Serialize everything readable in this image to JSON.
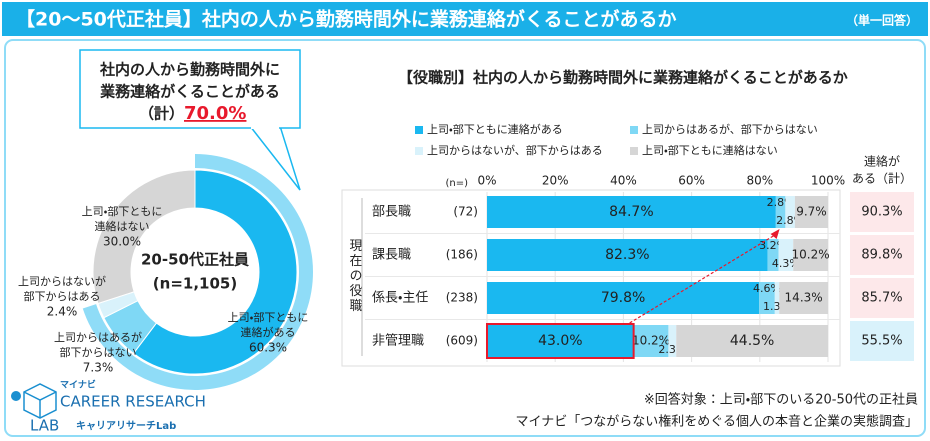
{
  "header": {
    "title": "【20～50代正社員】社内の人から勤務時間外に業務連絡がくることがあるか",
    "note": "（単一回答）"
  },
  "chart_data": [
    {
      "type": "pie",
      "center_label": "20-50代正社員",
      "center_sub": "(n=1,105)",
      "callout": {
        "lines": [
          "社内の人から勤務時間外に",
          "業務連絡がくることがある"
        ],
        "prefix": "（計）",
        "value": 70.0,
        "value_label": "70.0%",
        "color": "#8fdcf7"
      },
      "categories": [
        [
          "上司・部下ともに",
          "連絡がある"
        ],
        [
          "上司からはあるが",
          "部下からはない"
        ],
        [
          "上司からはないが",
          "部下からはある"
        ],
        [
          "上司・部下ともに",
          "連絡はない"
        ]
      ],
      "values": [
        60.3,
        7.3,
        2.4,
        30.0
      ],
      "value_labels": [
        "60.3%",
        "7.3%",
        "2.4%",
        "30.0%"
      ],
      "colors": [
        "#1ab8f0",
        "#7fd8f5",
        "#d9f2fb",
        "#d6d6d6"
      ]
    },
    {
      "type": "stacked-barh",
      "title": "【役職別】社内の人から勤務時間外に業務連絡がくることがあるか",
      "y_axis_label": "現在の役職",
      "n_header": "(n=)",
      "categories": [
        "部長職",
        "課長職",
        "係長・主任",
        "非管理職"
      ],
      "n_labels": [
        "(72)",
        "(186)",
        "(238)",
        "(609)"
      ],
      "series": [
        {
          "name": "上司・部下ともに連絡がある",
          "color": "#1ab8f0",
          "values": [
            84.7,
            82.3,
            79.8,
            43.0
          ],
          "value_labels": [
            "84.7%",
            "82.3%",
            "79.8%",
            "43.0%"
          ]
        },
        {
          "name": "上司からはあるが、部下からはない",
          "color": "#7fd8f5",
          "values": [
            2.8,
            3.2,
            4.6,
            10.2
          ],
          "value_labels": [
            "2.8%",
            "3.2%",
            "4.6%",
            "10.2%"
          ]
        },
        {
          "name": "上司からはないが、部下からはある",
          "color": "#d9f2fb",
          "values": [
            2.8,
            4.3,
            1.3,
            2.3
          ],
          "value_labels": [
            "2.8%",
            "4.3%",
            "1.3%",
            "2.3%"
          ]
        },
        {
          "name": "上司・部下ともに連絡はない",
          "color": "#d6d6d6",
          "values": [
            9.7,
            10.2,
            14.3,
            44.5
          ],
          "value_labels": [
            "9.7%",
            "10.2%",
            "14.3%",
            "44.5%"
          ]
        }
      ],
      "xlim": [
        0,
        100
      ],
      "xticks": [
        {
          "value": 0,
          "label": "0%"
        },
        {
          "value": 20,
          "label": "20%"
        },
        {
          "value": 40,
          "label": "40%"
        },
        {
          "value": 60,
          "label": "60%"
        },
        {
          "value": 80,
          "label": "80%"
        },
        {
          "value": 100,
          "label": "100%"
        }
      ],
      "grid": true,
      "totals": {
        "header": [
          "連絡が",
          "ある（計）"
        ],
        "values": [
          90.3,
          89.8,
          85.7,
          55.5
        ],
        "value_labels": [
          "90.3%",
          "89.8%",
          "85.7%",
          "55.5%"
        ],
        "colors": [
          "#fde8ea",
          "#fde8ea",
          "#fde8ea",
          "#d9f2fb"
        ]
      }
    }
  ],
  "footnotes": [
    "※回答対象：上司・部下のいる20-50代の正社員",
    "マイナビ「つながらない権利をめぐる個人の本音と企業の実態調査」"
  ],
  "logo": {
    "brand": "マイナビ",
    "line1": "CAREER RESEARCH",
    "line2": "LAB",
    "sub": "キャリアリサーチLab"
  }
}
